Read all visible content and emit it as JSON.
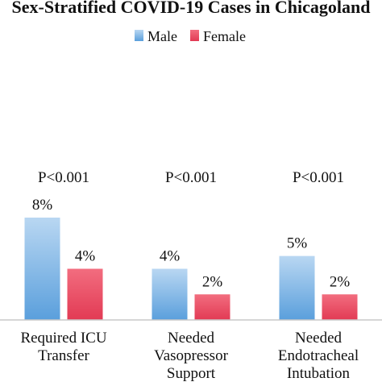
{
  "chart_data": {
    "type": "bar",
    "title": "Sex-Stratified COVID-19 Cases in Chicagoland",
    "categories": [
      [
        "Required ICU",
        "Transfer"
      ],
      [
        "Needed",
        "Vasopressor",
        "Support"
      ],
      [
        "Needed",
        "Endotracheal",
        "Intubation"
      ]
    ],
    "series": [
      {
        "name": "Male",
        "values": [
          8,
          4,
          5
        ],
        "labels": [
          "8%",
          "4%",
          "5%"
        ],
        "color_top": "#b9d7f2",
        "color_bottom": "#5a9fdc"
      },
      {
        "name": "Female",
        "values": [
          4,
          2,
          2
        ],
        "labels": [
          "4%",
          "2%",
          "2%"
        ],
        "color_top": "#f26d7f",
        "color_bottom": "#e23a54"
      }
    ],
    "annotations": [
      "P<0.001",
      "P<0.001",
      "P<0.001"
    ],
    "ylim": [
      0,
      8
    ],
    "grid": false,
    "legend_position": "top-center",
    "xlabel": "",
    "ylabel": ""
  }
}
